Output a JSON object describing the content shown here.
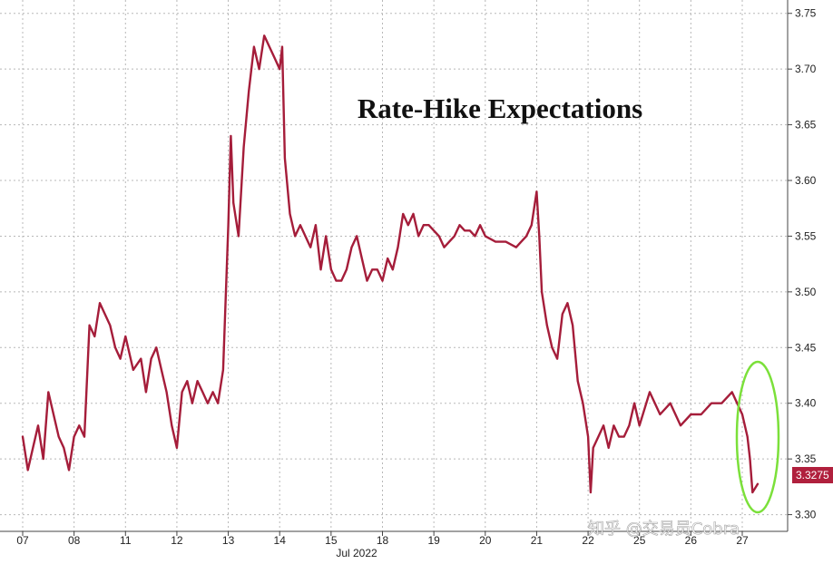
{
  "chart_data": {
    "type": "line",
    "title": "Rate-Hike Expectations",
    "xlabel": "Jul 2022",
    "ylabel": "",
    "ylim": [
      3.285,
      3.762
    ],
    "grid": true,
    "y_axis_position": "right",
    "yticks": [
      "3.75",
      "3.70",
      "3.65",
      "3.60",
      "3.55",
      "3.50",
      "3.45",
      "3.40",
      "3.35",
      "3.30"
    ],
    "categories": [
      "07",
      "08",
      "11",
      "12",
      "13",
      "14",
      "15",
      "18",
      "19",
      "20",
      "21",
      "22",
      "25",
      "26",
      "27"
    ],
    "last_value_label": "3.3275",
    "series": [
      {
        "color": "#a51d3a",
        "x": [
          0,
          0.1,
          0.2,
          0.3,
          0.4,
          0.5,
          0.6,
          0.7,
          0.8,
          0.9,
          1.0,
          1.1,
          1.2,
          1.3,
          1.4,
          1.5,
          1.6,
          1.7,
          1.8,
          1.9,
          2.0,
          2.15,
          2.3,
          2.4,
          2.5,
          2.6,
          2.7,
          2.8,
          2.9,
          3.0,
          3.1,
          3.2,
          3.3,
          3.4,
          3.5,
          3.6,
          3.7,
          3.8,
          3.9,
          4.0,
          4.05,
          4.1,
          4.2,
          4.3,
          4.4,
          4.5,
          4.6,
          4.7,
          4.8,
          4.9,
          5.0,
          5.05,
          5.1,
          5.2,
          5.3,
          5.4,
          5.5,
          5.6,
          5.7,
          5.8,
          5.9,
          6.0,
          6.1,
          6.2,
          6.3,
          6.4,
          6.5,
          6.6,
          6.7,
          6.8,
          6.9,
          7.0,
          7.1,
          7.2,
          7.3,
          7.4,
          7.5,
          7.6,
          7.7,
          7.8,
          7.9,
          8.0,
          8.1,
          8.2,
          8.3,
          8.4,
          8.5,
          8.6,
          8.7,
          8.8,
          8.9,
          9.0,
          9.2,
          9.4,
          9.6,
          9.7,
          9.8,
          9.9,
          10.0,
          10.05,
          10.1,
          10.2,
          10.3,
          10.4,
          10.5,
          10.6,
          10.7,
          10.8,
          10.9,
          11.0,
          11.05,
          11.1,
          11.2,
          11.3,
          11.4,
          11.5,
          11.6,
          11.7,
          11.8,
          11.9,
          12.0,
          12.2,
          12.4,
          12.6,
          12.8,
          13.0,
          13.2,
          13.4,
          13.6,
          13.8,
          14.0,
          14.1,
          14.15,
          14.2,
          14.3
        ],
        "values": [
          3.37,
          3.34,
          3.36,
          3.38,
          3.35,
          3.41,
          3.39,
          3.37,
          3.36,
          3.34,
          3.37,
          3.38,
          3.37,
          3.47,
          3.46,
          3.49,
          3.48,
          3.47,
          3.45,
          3.44,
          3.46,
          3.43,
          3.44,
          3.41,
          3.44,
          3.45,
          3.43,
          3.41,
          3.38,
          3.36,
          3.41,
          3.42,
          3.4,
          3.42,
          3.41,
          3.4,
          3.41,
          3.4,
          3.43,
          3.56,
          3.64,
          3.58,
          3.55,
          3.63,
          3.68,
          3.72,
          3.7,
          3.73,
          3.72,
          3.71,
          3.7,
          3.72,
          3.62,
          3.57,
          3.55,
          3.56,
          3.55,
          3.54,
          3.56,
          3.52,
          3.55,
          3.52,
          3.51,
          3.51,
          3.52,
          3.54,
          3.55,
          3.53,
          3.51,
          3.52,
          3.52,
          3.51,
          3.53,
          3.52,
          3.54,
          3.57,
          3.56,
          3.57,
          3.55,
          3.56,
          3.56,
          3.555,
          3.55,
          3.54,
          3.545,
          3.55,
          3.56,
          3.555,
          3.555,
          3.55,
          3.56,
          3.55,
          3.545,
          3.545,
          3.54,
          3.545,
          3.55,
          3.56,
          3.59,
          3.55,
          3.5,
          3.47,
          3.45,
          3.44,
          3.48,
          3.49,
          3.47,
          3.42,
          3.4,
          3.37,
          3.32,
          3.36,
          3.37,
          3.38,
          3.36,
          3.38,
          3.37,
          3.37,
          3.38,
          3.4,
          3.38,
          3.41,
          3.39,
          3.4,
          3.38,
          3.39,
          3.39,
          3.4,
          3.4,
          3.41,
          3.39,
          3.37,
          3.35,
          3.32,
          3.3275
        ]
      }
    ]
  },
  "watermark": "知乎 @交易员Cobra"
}
